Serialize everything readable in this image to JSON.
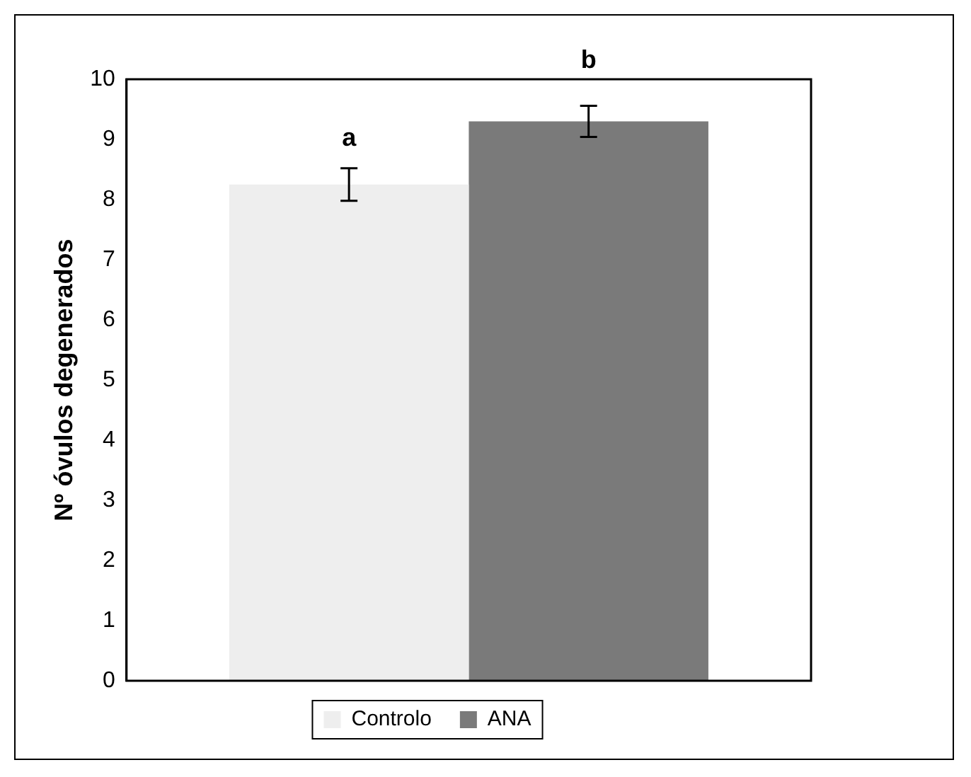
{
  "chart_data": {
    "type": "bar",
    "ylabel": "Nº óvulos degenerados",
    "categories": [
      null
    ],
    "series": [
      {
        "name": "Controlo",
        "color": "#eeeeee",
        "values": [
          8.25
        ],
        "errors": [
          0.27
        ]
      },
      {
        "name": "ANA",
        "color": "#7a7a7a",
        "values": [
          9.3
        ],
        "errors": [
          0.26
        ]
      }
    ],
    "annotations": [
      "a",
      "b"
    ],
    "ylim": [
      0,
      10
    ],
    "yticks": [
      0,
      1,
      2,
      3,
      4,
      5,
      6,
      7,
      8,
      9,
      10
    ],
    "grid": false,
    "legend": "bottom"
  }
}
